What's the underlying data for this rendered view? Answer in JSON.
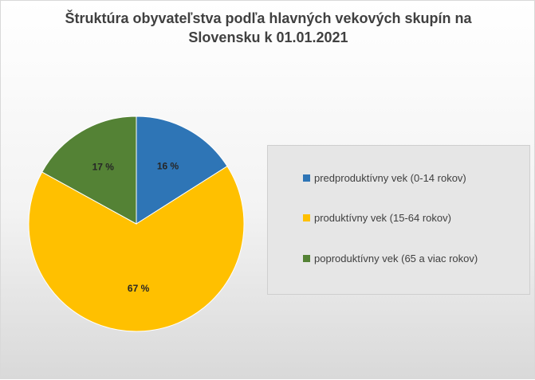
{
  "chart_data": {
    "type": "pie",
    "title_lines": [
      "Štruktúra obyvateľstva podľa hlavných vekových skupín na",
      "Slovensku k 01.01.2021"
    ],
    "categories": [
      "predproduktívny vek (0-14 rokov)",
      "produktívny vek (15-64 rokov)",
      "poproduktívny vek (65 a viac rokov)"
    ],
    "values": [
      16,
      67,
      17
    ],
    "data_labels": [
      "16 %",
      "67 %",
      "17 %"
    ],
    "colors": [
      "#2e75b6",
      "#ffc000",
      "#548235"
    ],
    "start_angle_deg": 0,
    "direction": "clockwise",
    "legend_position": "right"
  }
}
